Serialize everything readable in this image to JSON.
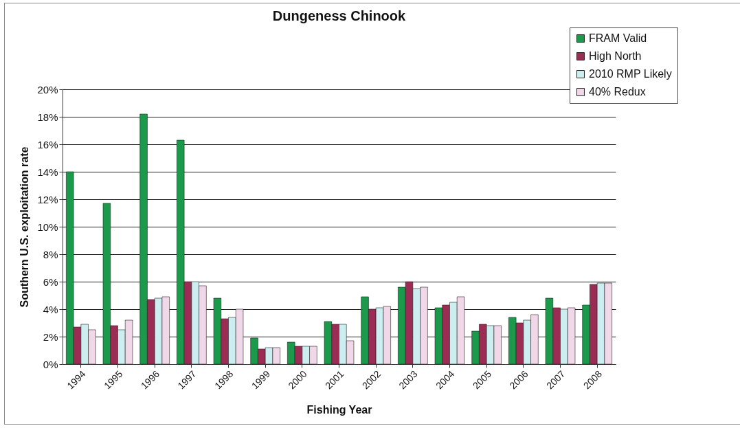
{
  "chart_data": {
    "type": "bar",
    "title": "Dungeness Chinook",
    "xlabel": "Fishing Year",
    "ylabel": "Southern U.S. exploitation rate",
    "categories": [
      "1994",
      "1995",
      "1996",
      "1997",
      "1998",
      "1999",
      "2000",
      "2001",
      "2002",
      "2003",
      "2004",
      "2005",
      "2006",
      "2007",
      "2008"
    ],
    "series": [
      {
        "name": "FRAM Valid",
        "color": "#1a9a4a",
        "values": [
          14.0,
          11.7,
          18.2,
          16.3,
          4.8,
          1.9,
          1.6,
          3.1,
          4.9,
          5.6,
          4.1,
          2.4,
          3.4,
          4.8,
          4.3
        ]
      },
      {
        "name": "High North",
        "color": "#9b2d55",
        "values": [
          2.7,
          2.8,
          4.7,
          6.0,
          3.3,
          1.1,
          1.3,
          2.9,
          4.0,
          6.0,
          4.3,
          2.9,
          3.0,
          4.1,
          5.8
        ]
      },
      {
        "name": "2010 RMP Likely",
        "color": "#cdeef0",
        "values": [
          2.9,
          2.5,
          4.8,
          6.0,
          3.4,
          1.2,
          1.3,
          2.9,
          4.1,
          5.5,
          4.5,
          2.8,
          3.2,
          4.0,
          5.9
        ]
      },
      {
        "name": "40% Redux",
        "color": "#f0d8e8",
        "values": [
          2.5,
          3.2,
          4.9,
          5.7,
          4.0,
          1.2,
          1.3,
          1.7,
          4.2,
          5.6,
          4.9,
          2.8,
          3.6,
          4.1,
          5.9
        ]
      }
    ],
    "ylim": [
      0,
      20
    ],
    "yticks": [
      {
        "value": 0,
        "label": "0%"
      },
      {
        "value": 2,
        "label": "2%"
      },
      {
        "value": 4,
        "label": "4%"
      },
      {
        "value": 6,
        "label": "6%"
      },
      {
        "value": 8,
        "label": "8%"
      },
      {
        "value": 10,
        "label": "10%"
      },
      {
        "value": 12,
        "label": "12%"
      },
      {
        "value": 14,
        "label": "14%"
      },
      {
        "value": 16,
        "label": "16%"
      },
      {
        "value": 18,
        "label": "18%"
      },
      {
        "value": 20,
        "label": "20%"
      }
    ],
    "grid": "y",
    "legend": "top right"
  }
}
